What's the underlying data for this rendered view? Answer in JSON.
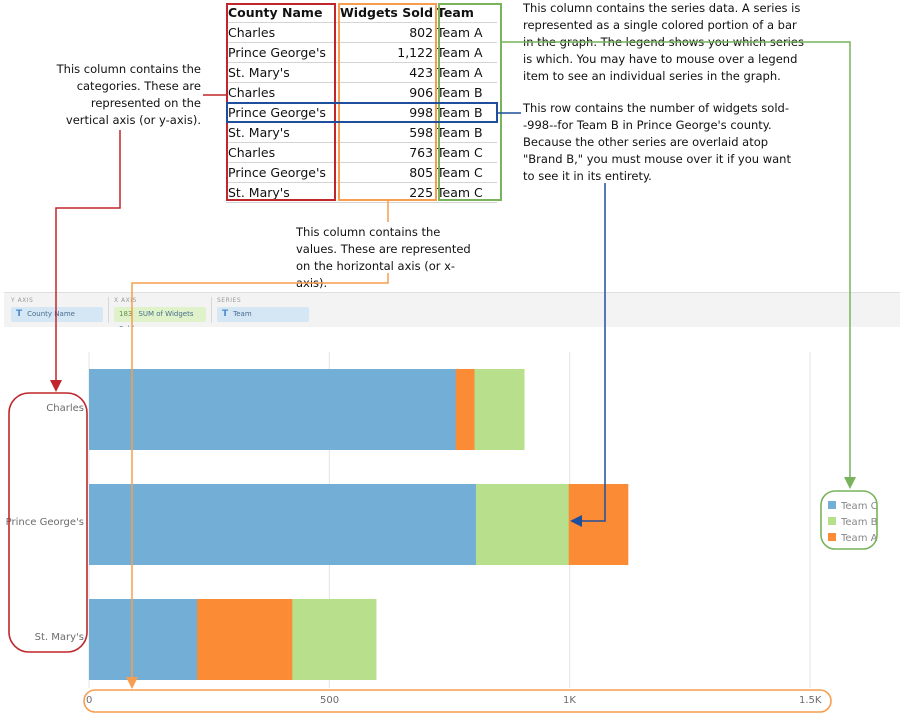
{
  "table": {
    "headers": [
      "County Name",
      "Widgets Sold",
      "Team"
    ],
    "rows": [
      [
        "Charles",
        "802",
        "Team A"
      ],
      [
        "Prince George's",
        "1,122",
        "Team A"
      ],
      [
        "St. Mary's",
        "423",
        "Team A"
      ],
      [
        "Charles",
        "906",
        "Team B"
      ],
      [
        "Prince George's",
        "998",
        "Team B"
      ],
      [
        "St. Mary's",
        "598",
        "Team B"
      ],
      [
        "Charles",
        "763",
        "Team C"
      ],
      [
        "Prince George's",
        "805",
        "Team C"
      ],
      [
        "St. Mary's",
        "225",
        "Team C"
      ]
    ]
  },
  "notes": {
    "categories": "This column contains the categories. These are represented on the vertical axis (or y-axis).",
    "series": "This column contains the series data. A series is represented as a single colored portion of a bar in the graph. The legend shows you which series is which. You may have to mouse over a legend item to see an individual series in the graph.",
    "row": "This row contains the number of widgets sold--998--for Team B in Prince George's county. Because the other series are overlaid atop \"Brand B,\" you must mouse over it if you want to see it in its entirety.",
    "values": "This column contains the values. These are represented on the horizontal axis (or x-axis)."
  },
  "toolbar": {
    "y_axis_label": "Y AXIS",
    "x_axis_label": "X AXIS",
    "series_label": "SERIES",
    "y_field": "County Name",
    "x_field_prefix": "183",
    "x_field": "SUM of Widgets Sold",
    "series_field": "Team",
    "text_icon": "T"
  },
  "colors": {
    "team_a": "#fb8c35",
    "team_b": "#b8e08c",
    "team_c": "#72aed6",
    "red": "#c0262b",
    "orange": "#f79d4f",
    "green": "#79b35b",
    "blue": "#1f4f9c"
  },
  "chart_data": {
    "type": "bar",
    "orientation": "horizontal",
    "categories": [
      "Charles",
      "Prince George's",
      "St. Mary's"
    ],
    "series": [
      {
        "name": "Team C",
        "values": [
          763,
          805,
          225
        ]
      },
      {
        "name": "Team B",
        "values": [
          906,
          998,
          598
        ]
      },
      {
        "name": "Team A",
        "values": [
          802,
          1122,
          423
        ]
      }
    ],
    "x_ticks": [
      "0",
      "500",
      "1K",
      "1.5K"
    ],
    "xlim": [
      0,
      1500
    ],
    "legend": [
      "Team C",
      "Team B",
      "Team A"
    ],
    "legend_position": "right",
    "grid": true
  }
}
